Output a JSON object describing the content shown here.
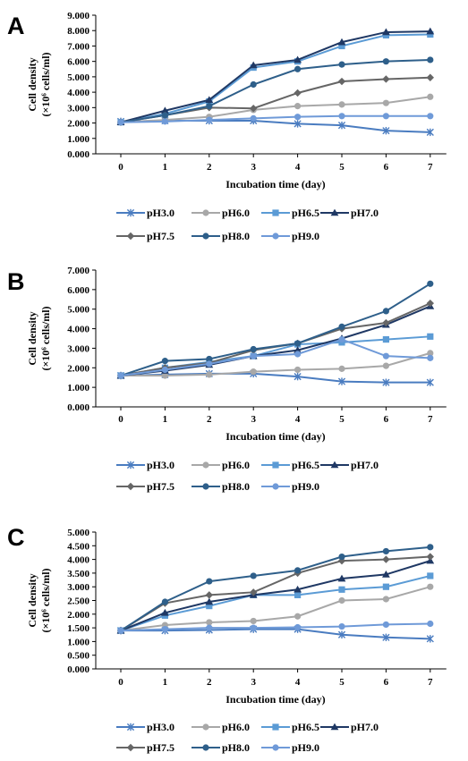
{
  "chart_data": [
    {
      "panel": "A",
      "type": "line",
      "xlabel": "Incubation time (day)",
      "ylabel_line1": "Cell density",
      "ylabel_line2": "(×10⁶ cells/ml)",
      "x": [
        0,
        1,
        2,
        3,
        4,
        5,
        6,
        7
      ],
      "x_tick_labels": [
        "0",
        "1",
        "2",
        "3",
        "4",
        "5",
        "6",
        "7"
      ],
      "ylim": [
        0,
        9
      ],
      "y_tick_labels": [
        "0.000",
        "1.000",
        "2.000",
        "3.000",
        "4.000",
        "5.000",
        "6.000",
        "7.000",
        "8.000",
        "9.000"
      ],
      "grid": false,
      "legend_position": "bottom",
      "series": [
        {
          "name": "pH3.0",
          "color": "#4a7cc0",
          "marker": "star",
          "values": [
            2.1,
            2.15,
            2.15,
            2.15,
            1.95,
            1.85,
            1.5,
            1.4
          ]
        },
        {
          "name": "pH6.0",
          "color": "#a8a8a8",
          "marker": "circle",
          "values": [
            2.05,
            2.2,
            2.4,
            2.85,
            3.1,
            3.2,
            3.3,
            3.7
          ]
        },
        {
          "name": "pH6.5",
          "color": "#5b9bd5",
          "marker": "square",
          "values": [
            2.05,
            2.6,
            3.4,
            5.6,
            6.0,
            7.0,
            7.7,
            7.75
          ]
        },
        {
          "name": "pH7.0",
          "color": "#1f3864",
          "marker": "triangle",
          "values": [
            2.05,
            2.8,
            3.5,
            5.75,
            6.1,
            7.25,
            7.9,
            7.95
          ]
        },
        {
          "name": "pH7.5",
          "color": "#666666",
          "marker": "diamond",
          "values": [
            2.05,
            2.5,
            3.0,
            2.95,
            3.95,
            4.7,
            4.85,
            4.95
          ]
        },
        {
          "name": "pH8.0",
          "color": "#2e5f8a",
          "marker": "circle",
          "values": [
            2.05,
            2.5,
            3.1,
            4.5,
            5.5,
            5.8,
            6.0,
            6.1
          ]
        },
        {
          "name": "pH9.0",
          "color": "#6f9ad8",
          "marker": "circle",
          "values": [
            2.05,
            2.1,
            2.2,
            2.3,
            2.4,
            2.45,
            2.45,
            2.45
          ]
        }
      ]
    },
    {
      "panel": "B",
      "type": "line",
      "xlabel": "Incubation time (day)",
      "ylabel_line1": "Cell density",
      "ylabel_line2": "(×10⁶ cells/ml)",
      "x": [
        0,
        1,
        2,
        3,
        4,
        5,
        6,
        7
      ],
      "x_tick_labels": [
        "0",
        "1",
        "2",
        "3",
        "4",
        "5",
        "6",
        "7"
      ],
      "ylim": [
        0,
        7
      ],
      "y_tick_labels": [
        "0.000",
        "1.000",
        "2.000",
        "3.000",
        "4.000",
        "5.000",
        "6.000",
        "7.000"
      ],
      "grid": false,
      "legend_position": "bottom",
      "series": [
        {
          "name": "pH3.0",
          "color": "#4a7cc0",
          "marker": "star",
          "values": [
            1.6,
            1.65,
            1.7,
            1.7,
            1.55,
            1.3,
            1.25,
            1.25
          ]
        },
        {
          "name": "pH6.0",
          "color": "#a8a8a8",
          "marker": "circle",
          "values": [
            1.6,
            1.6,
            1.65,
            1.8,
            1.9,
            1.95,
            2.1,
            2.75
          ]
        },
        {
          "name": "pH6.5",
          "color": "#5b9bd5",
          "marker": "square",
          "values": [
            1.6,
            2.0,
            2.3,
            2.6,
            3.2,
            3.3,
            3.45,
            3.6
          ]
        },
        {
          "name": "pH7.0",
          "color": "#1f3864",
          "marker": "triangle",
          "values": [
            1.6,
            1.85,
            2.15,
            2.6,
            2.9,
            3.5,
            4.2,
            5.15
          ]
        },
        {
          "name": "pH7.5",
          "color": "#666666",
          "marker": "diamond",
          "values": [
            1.6,
            2.0,
            2.25,
            2.9,
            3.25,
            4.0,
            4.3,
            5.3
          ]
        },
        {
          "name": "pH8.0",
          "color": "#2e5f8a",
          "marker": "circle",
          "values": [
            1.6,
            2.35,
            2.45,
            2.95,
            3.25,
            4.1,
            4.9,
            6.3
          ]
        },
        {
          "name": "pH9.0",
          "color": "#6f9ad8",
          "marker": "circle",
          "values": [
            1.6,
            1.9,
            2.2,
            2.6,
            2.7,
            3.45,
            2.6,
            2.5
          ]
        }
      ]
    },
    {
      "panel": "C",
      "type": "line",
      "xlabel": "Incubation time (day)",
      "ylabel_line1": "Cell density",
      "ylabel_line2": "(×10⁶ cells/ml)",
      "x": [
        0,
        1,
        2,
        3,
        4,
        5,
        6,
        7
      ],
      "x_tick_labels": [
        "0",
        "1",
        "2",
        "3",
        "4",
        "5",
        "6",
        "7"
      ],
      "ylim": [
        0,
        5
      ],
      "y_tick_labels": [
        "0.000",
        "0.500",
        "1.000",
        "1.500",
        "2.000",
        "2.500",
        "3.000",
        "3.500",
        "4.000",
        "4.500",
        "5.000"
      ],
      "grid": false,
      "legend_position": "bottom",
      "series": [
        {
          "name": "pH3.0",
          "color": "#4a7cc0",
          "marker": "star",
          "values": [
            1.4,
            1.4,
            1.42,
            1.45,
            1.45,
            1.25,
            1.15,
            1.1
          ]
        },
        {
          "name": "pH6.0",
          "color": "#a8a8a8",
          "marker": "circle",
          "values": [
            1.4,
            1.6,
            1.7,
            1.75,
            1.92,
            2.5,
            2.55,
            3.0
          ]
        },
        {
          "name": "pH6.5",
          "color": "#5b9bd5",
          "marker": "square",
          "values": [
            1.4,
            1.95,
            2.3,
            2.7,
            2.7,
            2.9,
            3.0,
            3.4
          ]
        },
        {
          "name": "pH7.0",
          "color": "#1f3864",
          "marker": "triangle",
          "values": [
            1.4,
            2.05,
            2.45,
            2.7,
            2.9,
            3.3,
            3.45,
            3.95
          ]
        },
        {
          "name": "pH7.5",
          "color": "#666666",
          "marker": "diamond",
          "values": [
            1.4,
            2.4,
            2.7,
            2.8,
            3.5,
            3.95,
            4.0,
            4.1
          ]
        },
        {
          "name": "pH8.0",
          "color": "#2e5f8a",
          "marker": "circle",
          "values": [
            1.4,
            2.45,
            3.2,
            3.4,
            3.6,
            4.1,
            4.3,
            4.45
          ]
        },
        {
          "name": "pH9.0",
          "color": "#6f9ad8",
          "marker": "circle",
          "values": [
            1.4,
            1.45,
            1.5,
            1.5,
            1.52,
            1.55,
            1.62,
            1.65
          ]
        }
      ]
    }
  ]
}
